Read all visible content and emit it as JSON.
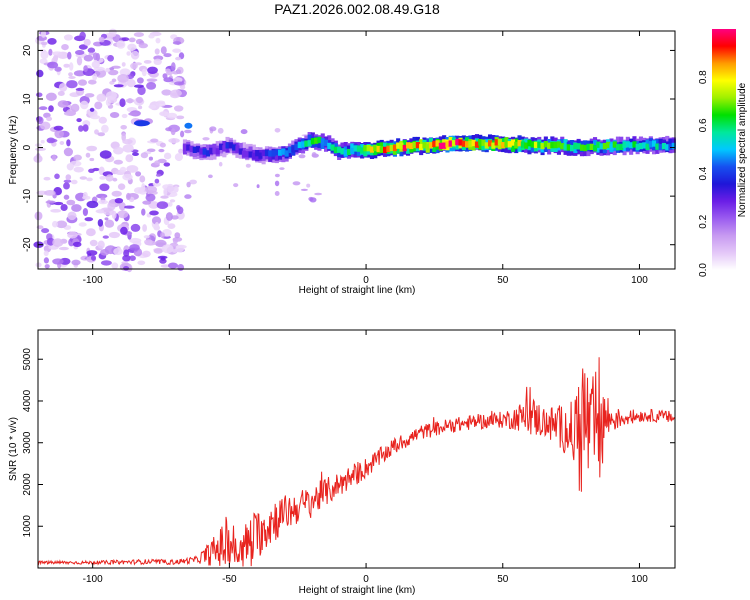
{
  "title": "PAZ1.2026.002.08.49.G18",
  "colors": {
    "snr_line": "#e8231e",
    "axis": "#000000",
    "colormap": [
      "#ffffff",
      "#e4c8f8",
      "#c79af1",
      "#9b5cf0",
      "#6a1ee6",
      "#1f16d8",
      "#1650f0",
      "#00c8ff",
      "#00e89c",
      "#00e000",
      "#9ef000",
      "#ffff00",
      "#ff9c00",
      "#ff0000",
      "#ff0080"
    ]
  },
  "chart_data": [
    {
      "type": "heatmap",
      "name": "spectrogram",
      "xlabel": "Height of straight line (km)",
      "ylabel": "Frequency (Hz)",
      "xlim": [
        -120,
        113
      ],
      "ylim": [
        -25,
        24
      ],
      "x_ticks": [
        -100,
        -50,
        0,
        50,
        100
      ],
      "y_ticks": [
        -20,
        -10,
        0,
        10,
        20
      ],
      "x_tick_labels": [
        "-100",
        "-50",
        "0",
        "50",
        "100"
      ],
      "y_tick_labels": [
        "-20",
        "-10",
        "0",
        "10",
        "20"
      ],
      "colorbar": {
        "label": "Normalized spectral amplitude",
        "range": [
          0,
          1
        ],
        "ticks": [
          0.0,
          0.2,
          0.4,
          0.6,
          0.8
        ],
        "tick_labels": [
          "0.0",
          "0.2",
          "0.4",
          "0.6",
          "0.8"
        ]
      },
      "ridge": {
        "description": "dominant frequency track",
        "x": [
          -67,
          -60,
          -55,
          -50,
          -45,
          -40,
          -35,
          -30,
          -25,
          -20,
          -15,
          -10,
          -5,
          0,
          10,
          20,
          30,
          40,
          50,
          60,
          70,
          80,
          90,
          100,
          113
        ],
        "y": [
          0.0,
          -1.0,
          -0.5,
          0.5,
          -1.0,
          -1.5,
          -1.5,
          -1.0,
          0.5,
          1.5,
          1.0,
          -1.0,
          -0.3,
          -0.5,
          0.0,
          0.3,
          0.8,
          0.8,
          0.7,
          0.5,
          0.3,
          0.2,
          0.3,
          0.5,
          0.4
        ],
        "amplitude": [
          0.3,
          0.35,
          0.3,
          0.35,
          0.3,
          0.35,
          0.4,
          0.45,
          0.5,
          0.6,
          0.5,
          0.55,
          0.6,
          0.7,
          0.9,
          0.85,
          0.95,
          0.8,
          0.85,
          0.7,
          0.65,
          0.6,
          0.6,
          0.55,
          0.5
        ]
      },
      "noise_region": {
        "x_range": [
          -120,
          -67
        ],
        "y_range": [
          -25,
          24
        ],
        "amplitude_range": [
          0.05,
          0.3
        ]
      }
    },
    {
      "type": "line",
      "name": "snr",
      "xlabel": "Height of straight line (km)",
      "ylabel": "SNR (10 * v/v)",
      "xlim": [
        -120,
        113
      ],
      "ylim": [
        0,
        5700
      ],
      "x_ticks": [
        -100,
        -50,
        0,
        50,
        100
      ],
      "y_ticks": [
        1000,
        2000,
        3000,
        4000,
        5000
      ],
      "x_tick_labels": [
        "-100",
        "-50",
        "0",
        "50",
        "100"
      ],
      "y_tick_labels": [
        "1000",
        "2000",
        "3000",
        "4000",
        "5000"
      ],
      "envelope": {
        "x": [
          -120,
          -100,
          -80,
          -70,
          -62,
          -57,
          -53,
          -50,
          -47,
          -43,
          -40,
          -35,
          -30,
          -25,
          -20,
          -15,
          -10,
          -5,
          0,
          10,
          20,
          30,
          40,
          50,
          55,
          60,
          65,
          70,
          75,
          78,
          80,
          82,
          85,
          88,
          90,
          95,
          100,
          105,
          113
        ],
        "mean": [
          130,
          130,
          150,
          140,
          200,
          350,
          500,
          700,
          300,
          600,
          800,
          1100,
          1300,
          1450,
          1600,
          1800,
          2000,
          2200,
          2400,
          2900,
          3250,
          3400,
          3500,
          3550,
          3600,
          3650,
          3500,
          3400,
          3300,
          3300,
          3500,
          3300,
          3400,
          3600,
          3550,
          3600,
          3650,
          3650,
          3600
        ],
        "jitter": [
          40,
          40,
          60,
          60,
          80,
          300,
          500,
          900,
          250,
          700,
          600,
          600,
          450,
          400,
          400,
          350,
          300,
          300,
          250,
          200,
          180,
          180,
          180,
          200,
          300,
          500,
          400,
          500,
          700,
          1400,
          2200,
          1000,
          1800,
          700,
          300,
          200,
          150,
          150,
          150
        ]
      }
    }
  ]
}
